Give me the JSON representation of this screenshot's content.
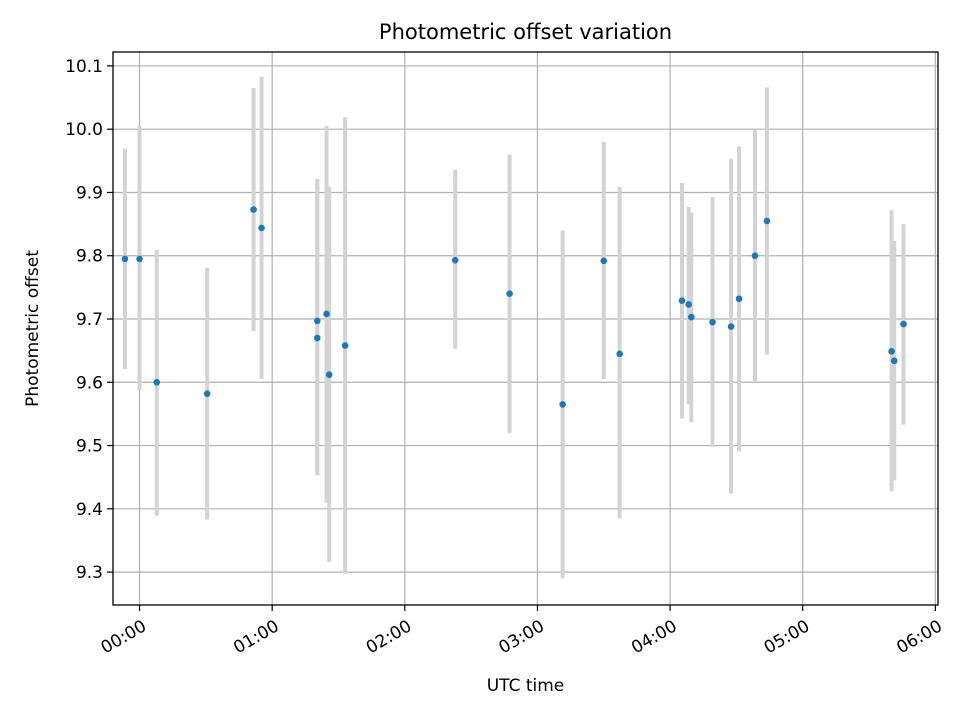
{
  "chart_data": {
    "type": "scatter",
    "title": "Photometric offset variation",
    "xlabel": "UTC time",
    "ylabel": "Photometric offset",
    "xlim": [
      -0.2,
      6.02
    ],
    "ylim": [
      9.248,
      10.122
    ],
    "grid": true,
    "xticks": [
      {
        "value": 0,
        "label": "00:00"
      },
      {
        "value": 1,
        "label": "01:00"
      },
      {
        "value": 2,
        "label": "02:00"
      },
      {
        "value": 3,
        "label": "03:00"
      },
      {
        "value": 4,
        "label": "04:00"
      },
      {
        "value": 5,
        "label": "05:00"
      },
      {
        "value": 6,
        "label": "06:00"
      }
    ],
    "yticks": [
      {
        "value": 9.3,
        "label": "9.3"
      },
      {
        "value": 9.4,
        "label": "9.4"
      },
      {
        "value": 9.5,
        "label": "9.5"
      },
      {
        "value": 9.6,
        "label": "9.6"
      },
      {
        "value": 9.7,
        "label": "9.7"
      },
      {
        "value": 9.8,
        "label": "9.8"
      },
      {
        "value": 9.9,
        "label": "9.9"
      },
      {
        "value": 10.0,
        "label": "10.0"
      },
      {
        "value": 10.1,
        "label": "10.1"
      }
    ],
    "series": [
      {
        "name": "offset",
        "color": "#1f77b4",
        "errorbar_color": "#d3d3d3",
        "points": [
          {
            "x": -0.11,
            "y": 9.795,
            "ylow": 9.621,
            "yhigh": 9.969
          },
          {
            "x": 0.0,
            "y": 9.795,
            "ylow": 9.587,
            "yhigh": 10.005
          },
          {
            "x": 0.13,
            "y": 9.6,
            "ylow": 9.389,
            "yhigh": 9.809
          },
          {
            "x": 0.51,
            "y": 9.582,
            "ylow": 9.383,
            "yhigh": 9.781
          },
          {
            "x": 0.86,
            "y": 9.873,
            "ylow": 9.681,
            "yhigh": 10.065
          },
          {
            "x": 0.92,
            "y": 9.844,
            "ylow": 9.605,
            "yhigh": 10.083
          },
          {
            "x": 1.34,
            "y": 9.67,
            "ylow": 9.453,
            "yhigh": 9.921
          },
          {
            "x": 1.34,
            "y": 9.697,
            "ylow": 9.453,
            "yhigh": 9.921
          },
          {
            "x": 1.41,
            "y": 9.708,
            "ylow": 9.41,
            "yhigh": 10.005
          },
          {
            "x": 1.43,
            "y": 9.612,
            "ylow": 9.316,
            "yhigh": 9.909
          },
          {
            "x": 1.55,
            "y": 9.658,
            "ylow": 9.297,
            "yhigh": 10.019
          },
          {
            "x": 2.38,
            "y": 9.793,
            "ylow": 9.653,
            "yhigh": 9.936
          },
          {
            "x": 2.79,
            "y": 9.74,
            "ylow": 9.52,
            "yhigh": 9.96
          },
          {
            "x": 3.19,
            "y": 9.565,
            "ylow": 9.29,
            "yhigh": 9.84
          },
          {
            "x": 3.5,
            "y": 9.792,
            "ylow": 9.605,
            "yhigh": 9.98
          },
          {
            "x": 3.62,
            "y": 9.645,
            "ylow": 9.385,
            "yhigh": 9.909
          },
          {
            "x": 4.09,
            "y": 9.729,
            "ylow": 9.543,
            "yhigh": 9.915
          },
          {
            "x": 4.14,
            "y": 9.723,
            "ylow": 9.565,
            "yhigh": 9.877
          },
          {
            "x": 4.16,
            "y": 9.703,
            "ylow": 9.537,
            "yhigh": 9.868
          },
          {
            "x": 4.32,
            "y": 9.695,
            "ylow": 9.498,
            "yhigh": 9.893
          },
          {
            "x": 4.46,
            "y": 9.688,
            "ylow": 9.424,
            "yhigh": 9.953
          },
          {
            "x": 4.52,
            "y": 9.732,
            "ylow": 9.491,
            "yhigh": 9.973
          },
          {
            "x": 4.64,
            "y": 9.8,
            "ylow": 9.6,
            "yhigh": 10.0
          },
          {
            "x": 4.73,
            "y": 9.855,
            "ylow": 9.644,
            "yhigh": 10.066
          },
          {
            "x": 5.67,
            "y": 9.649,
            "ylow": 9.428,
            "yhigh": 9.872
          },
          {
            "x": 5.69,
            "y": 9.634,
            "ylow": 9.445,
            "yhigh": 9.823
          },
          {
            "x": 5.76,
            "y": 9.692,
            "ylow": 9.533,
            "yhigh": 9.85
          }
        ]
      }
    ]
  }
}
